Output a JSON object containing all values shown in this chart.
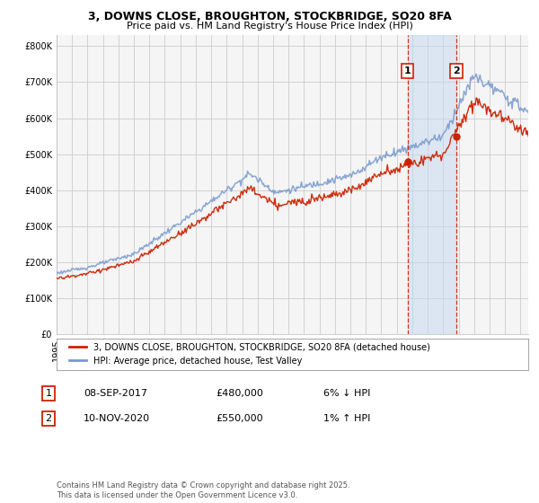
{
  "title": "3, DOWNS CLOSE, BROUGHTON, STOCKBRIDGE, SO20 8FA",
  "subtitle": "Price paid vs. HM Land Registry's House Price Index (HPI)",
  "ylabel_ticks": [
    "£0",
    "£100K",
    "£200K",
    "£300K",
    "£400K",
    "£500K",
    "£600K",
    "£700K",
    "£800K"
  ],
  "ytick_values": [
    0,
    100000,
    200000,
    300000,
    400000,
    500000,
    600000,
    700000,
    800000
  ],
  "ylim": [
    0,
    830000
  ],
  "xlim_start": 1995.0,
  "xlim_end": 2025.5,
  "sale1_date": 2017.69,
  "sale1_price": 480000,
  "sale1_label": "1",
  "sale2_date": 2020.86,
  "sale2_price": 550000,
  "sale2_label": "2",
  "red_color": "#cc2200",
  "blue_color": "#7799cc",
  "blue_fill": "#c5d8f0",
  "vline_color": "#cc2200",
  "grid_color": "#cccccc",
  "bg_color": "#f5f5f5",
  "legend_line1": "3, DOWNS CLOSE, BROUGHTON, STOCKBRIDGE, SO20 8FA (detached house)",
  "legend_line2": "HPI: Average price, detached house, Test Valley",
  "table_row1": [
    "1",
    "08-SEP-2017",
    "£480,000",
    "6% ↓ HPI"
  ],
  "table_row2": [
    "2",
    "10-NOV-2020",
    "£550,000",
    "1% ↑ HPI"
  ],
  "footnote": "Contains HM Land Registry data © Crown copyright and database right 2025.\nThis data is licensed under the Open Government Licence v3.0.",
  "title_fontsize": 9,
  "subtitle_fontsize": 8,
  "axis_fontsize": 7
}
